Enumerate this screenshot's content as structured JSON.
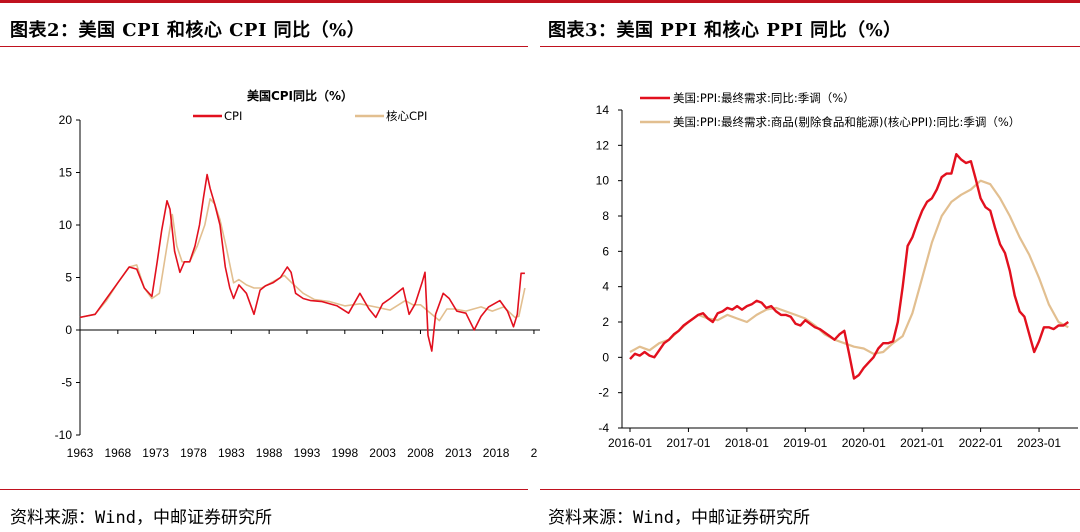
{
  "panels": {
    "left": {
      "figure_title": "图表2：美国 CPI 和核心 CPI 同比（%）",
      "source": "资料来源：Wind，中邮证券研究所"
    },
    "right": {
      "figure_title": "图表3：美国 PPI 和核心 PPI 同比（%）",
      "source": "资料来源：Wind，中邮证券研究所"
    }
  },
  "colors": {
    "accent": "#c0121f",
    "series_red": "#e2101e",
    "series_tan": "#e2bf90"
  },
  "chart_data": [
    {
      "type": "line",
      "title": "美国CPI同比（%）",
      "xlabel": "",
      "ylabel": "",
      "ylim": [
        -10,
        20
      ],
      "yticks": [
        "20",
        "15",
        "10",
        "5",
        "0",
        "-5",
        "-10"
      ],
      "xticks": [
        "1963",
        "1968",
        "1973",
        "1978",
        "1983",
        "1988",
        "1993",
        "1998",
        "2003",
        "2008",
        "2013",
        "2018",
        "2"
      ],
      "xlim": [
        1963,
        2023.8
      ],
      "legend_position": "top",
      "series": [
        {
          "name": "CPI",
          "x": [
            1963,
            1965,
            1966.5,
            1968,
            1969.5,
            1970.5,
            1971.5,
            1972.5,
            1973.2,
            1973.8,
            1974.5,
            1974.9,
            1975.5,
            1976.2,
            1976.8,
            1977.5,
            1978.2,
            1978.8,
            1979.3,
            1979.8,
            1980.2,
            1980.8,
            1981.5,
            1982.2,
            1982.8,
            1983.3,
            1984,
            1985,
            1986,
            1986.8,
            1987.5,
            1988.5,
            1989.5,
            1990.4,
            1990.9,
            1991.5,
            1992.5,
            1993.5,
            1995,
            1997,
            1998.5,
            2000,
            2001.2,
            2002.1,
            2003,
            2004,
            2005.7,
            2006.5,
            2007.3,
            2008.2,
            2008.6,
            2009.0,
            2009.5,
            2010,
            2011,
            2011.8,
            2012.8,
            2014,
            2015.1,
            2016,
            2017,
            2018.5,
            2019.5,
            2020.3,
            2020.8,
            2021.3,
            2021.8
          ],
          "values": [
            1.2,
            1.5,
            3.0,
            4.5,
            6.0,
            5.8,
            4.0,
            3.2,
            6.5,
            9.5,
            12.3,
            11.5,
            7.5,
            5.5,
            6.5,
            6.5,
            8.0,
            10.0,
            12.5,
            14.8,
            13.5,
            12.0,
            10.0,
            6.0,
            4.0,
            3.0,
            4.3,
            3.5,
            1.5,
            3.8,
            4.2,
            4.5,
            5.0,
            6.0,
            5.5,
            3.5,
            3.0,
            2.8,
            2.7,
            2.3,
            1.6,
            3.5,
            2.0,
            1.2,
            2.5,
            3.0,
            4.0,
            1.5,
            2.5,
            4.5,
            5.5,
            -0.5,
            -2.0,
            1.5,
            3.5,
            3.0,
            1.8,
            1.6,
            0.0,
            1.3,
            2.2,
            2.8,
            1.8,
            0.3,
            1.5,
            5.4,
            5.4
          ]
        },
        {
          "name": "核心CPI",
          "x": [
            1963,
            1965,
            1966.5,
            1968,
            1969.5,
            1970.5,
            1971.5,
            1972.5,
            1973.5,
            1974.5,
            1975.2,
            1975.8,
            1976.5,
            1977.5,
            1978.5,
            1979.5,
            1980.2,
            1980.8,
            1981.5,
            1982.3,
            1983.3,
            1984,
            1985,
            1986,
            1987,
            1988,
            1990,
            1991,
            1992.5,
            1994,
            1996,
            1998,
            2000,
            2002,
            2004,
            2006,
            2007,
            2008,
            2009,
            2010.5,
            2011.5,
            2012.5,
            2014,
            2016,
            2017.5,
            2019,
            2020.5,
            2021,
            2021.8
          ],
          "values": [
            1.2,
            1.5,
            2.8,
            4.5,
            6.0,
            6.2,
            4.0,
            3.0,
            3.5,
            8.0,
            11.0,
            8.0,
            6.5,
            6.5,
            8.0,
            10.0,
            12.5,
            12.0,
            10.5,
            8.0,
            4.5,
            4.8,
            4.3,
            4.0,
            4.0,
            4.4,
            5.2,
            4.5,
            3.5,
            2.9,
            2.7,
            2.3,
            2.5,
            2.2,
            1.9,
            2.8,
            2.4,
            2.4,
            1.8,
            0.9,
            2.0,
            2.0,
            1.8,
            2.2,
            1.8,
            2.2,
            1.2,
            1.3,
            4.0
          ]
        }
      ]
    },
    {
      "type": "line",
      "title": "",
      "xlabel": "",
      "ylabel": "",
      "ylim": [
        -4,
        14
      ],
      "yticks": [
        "14",
        "12",
        "10",
        "8",
        "6",
        "4",
        "2",
        "0",
        "-2",
        "-4"
      ],
      "xticks": [
        "2016-01",
        "2017-01",
        "2018-01",
        "2019-01",
        "2020-01",
        "2021-01",
        "2022-01",
        "2023-01"
      ],
      "legend_position": "top-left",
      "series": [
        {
          "name": "美国:PPI:最终需求:同比:季调（%）",
          "x": [
            0,
            1,
            2,
            3,
            4,
            5,
            6,
            7,
            8,
            9,
            10,
            11,
            12,
            13,
            14,
            15,
            16,
            17,
            18,
            19,
            20,
            21,
            22,
            23,
            24,
            25,
            26,
            27,
            28,
            29,
            30,
            31,
            32,
            33,
            34,
            35,
            36,
            37,
            38,
            39,
            40,
            41,
            42,
            43,
            44,
            45,
            46,
            47,
            48,
            49,
            50,
            51,
            52,
            53,
            54,
            55,
            56,
            57,
            58,
            59,
            60,
            61,
            62,
            63,
            64,
            65,
            66,
            67,
            68,
            69,
            70,
            71,
            72,
            73,
            74,
            75,
            76,
            77,
            78,
            79,
            80,
            81,
            82,
            83,
            84,
            85,
            86,
            87,
            88,
            89,
            90
          ],
          "values": [
            -0.1,
            0.2,
            0.1,
            0.3,
            0.1,
            0.0,
            0.4,
            0.8,
            1.0,
            1.3,
            1.5,
            1.8,
            2.0,
            2.2,
            2.4,
            2.5,
            2.2,
            2.0,
            2.5,
            2.6,
            2.8,
            2.7,
            2.9,
            2.7,
            2.9,
            3.0,
            3.2,
            3.1,
            2.8,
            2.9,
            2.6,
            2.4,
            2.4,
            2.3,
            1.9,
            1.8,
            2.1,
            1.9,
            1.7,
            1.6,
            1.4,
            1.2,
            1.0,
            1.3,
            1.5,
            0.2,
            -1.2,
            -1.0,
            -0.6,
            -0.3,
            0.0,
            0.5,
            0.8,
            0.8,
            0.9,
            2.0,
            4.0,
            6.3,
            6.8,
            7.6,
            8.3,
            8.8,
            9.0,
            9.5,
            10.2,
            10.4,
            10.4,
            11.5,
            11.2,
            11.0,
            11.1,
            10.1,
            9.0,
            8.5,
            8.3,
            7.3,
            6.4,
            5.9,
            4.9,
            3.5,
            2.6,
            2.3,
            1.3,
            0.3,
            0.9,
            1.7,
            1.7,
            1.6,
            1.8,
            1.8,
            2.0
          ]
        },
        {
          "name": "美国:PPI:最终需求:商品(剔除食品和能源)(核心PPI):同比:季调（%）",
          "x": [
            0,
            2,
            4,
            6,
            8,
            10,
            12,
            14,
            16,
            18,
            20,
            22,
            24,
            26,
            28,
            30,
            32,
            34,
            36,
            38,
            40,
            42,
            44,
            46,
            48,
            50,
            52,
            54,
            56,
            58,
            60,
            62,
            64,
            66,
            68,
            70,
            72,
            74,
            76,
            78,
            80,
            82,
            84,
            86,
            88,
            90
          ],
          "values": [
            0.3,
            0.6,
            0.4,
            0.8,
            1.0,
            1.5,
            2.0,
            2.4,
            2.2,
            2.1,
            2.4,
            2.2,
            2.0,
            2.4,
            2.7,
            2.8,
            2.6,
            2.4,
            2.2,
            1.8,
            1.3,
            1.0,
            0.8,
            0.6,
            0.5,
            0.2,
            0.3,
            0.8,
            1.2,
            2.5,
            4.5,
            6.5,
            8.0,
            8.8,
            9.2,
            9.5,
            10.0,
            9.8,
            9.0,
            8.0,
            6.8,
            5.8,
            4.5,
            3.0,
            2.0,
            1.7
          ]
        }
      ]
    }
  ]
}
